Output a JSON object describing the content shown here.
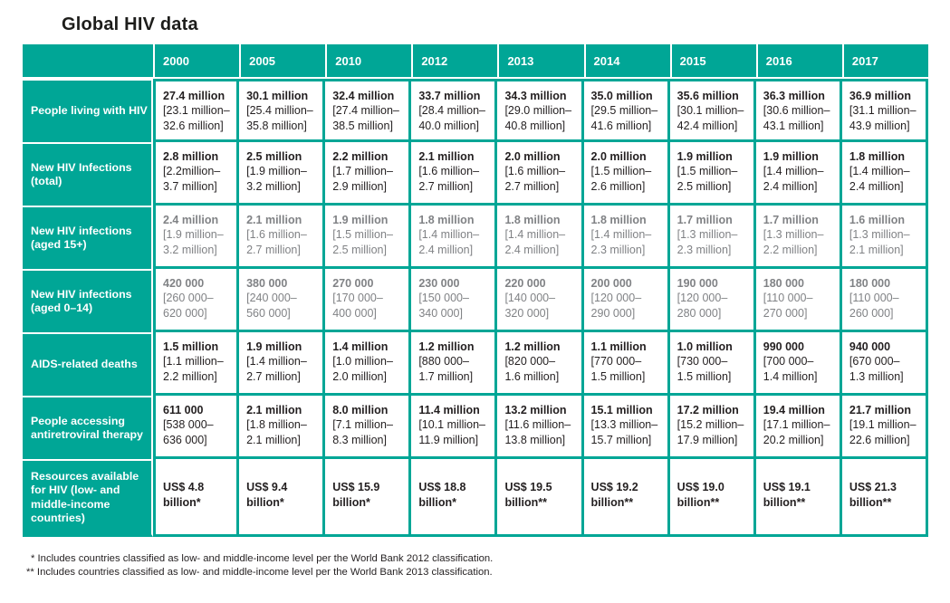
{
  "title": "Global HIV data",
  "colors": {
    "teal": "#00a696",
    "text_dark": "#231f20",
    "text_muted_gray": "#808285",
    "background": "#ffffff"
  },
  "table": {
    "year_headers": [
      "2000",
      "2005",
      "2010",
      "2012",
      "2013",
      "2014",
      "2015",
      "2016",
      "2017"
    ],
    "rows": [
      {
        "label": "People living with HIV",
        "muted": false,
        "tall": false,
        "cells": [
          {
            "value": "27.4 million",
            "range": "[23.1 million–​32.6 million]"
          },
          {
            "value": "30.1 million",
            "range": "[25.4 million–​35.8 million]"
          },
          {
            "value": "32.4 million",
            "range": "[27.4 million–​38.5 million]"
          },
          {
            "value": "33.7 million",
            "range": "[28.4 million–​40.0 million]"
          },
          {
            "value": "34.3 million",
            "range": "[29.0 million–​40.8 million]"
          },
          {
            "value": "35.0 million",
            "range": "[29.5 million–​41.6 million]"
          },
          {
            "value": "35.6 million",
            "range": "[30.1 million–​42.4 million]"
          },
          {
            "value": "36.3 million",
            "range": "[30.6 million–​43.1 million]"
          },
          {
            "value": "36.9 million",
            "range": "[31.1 million–​43.9 million]"
          }
        ]
      },
      {
        "label": "New HIV Infections (total)",
        "muted": false,
        "tall": false,
        "cells": [
          {
            "value": "2.8 million",
            "range": "[2.2million–​3.7 million]"
          },
          {
            "value": "2.5 million",
            "range": "[1.9 million–​3.2 million]"
          },
          {
            "value": "2.2 million",
            "range": "[1.7 million–​2.9 million]"
          },
          {
            "value": "2.1 million",
            "range": "[1.6 million–​2.7 million]"
          },
          {
            "value": "2.0 million",
            "range": "[1.6 million–​2.7 million]"
          },
          {
            "value": "2.0 million",
            "range": "[1.5 million–​2.6 million]"
          },
          {
            "value": "1.9 million",
            "range": "[1.5 million–​2.5 million]"
          },
          {
            "value": "1.9 million",
            "range": "[1.4 million–​2.4 million]"
          },
          {
            "value": "1.8 million",
            "range": "[1.4 million–​2.4 million]"
          }
        ]
      },
      {
        "label": "New HIV infections (aged 15+)",
        "muted": true,
        "tall": false,
        "cells": [
          {
            "value": "2.4 million",
            "range": "[1.9 million–​3.2 million]"
          },
          {
            "value": "2.1 million",
            "range": "[1.6 million–​2.7 million]"
          },
          {
            "value": "1.9 million",
            "range": "[1.5 million–​2.5 million]"
          },
          {
            "value": "1.8 million",
            "range": "[1.4 million–​2.4 million]"
          },
          {
            "value": "1.8 million",
            "range": "[1.4 million–​2.4 million]"
          },
          {
            "value": "1.8 million",
            "range": "[1.4 million–​2.3 million]"
          },
          {
            "value": "1.7 million",
            "range": "[1.3 million–​2.3 million]"
          },
          {
            "value": "1.7 million",
            "range": "[1.3 million–​2.2 million]"
          },
          {
            "value": "1.6 million",
            "range": "[1.3 million–​2.1 million]"
          }
        ]
      },
      {
        "label": "New HIV infections (aged 0–14)",
        "muted": true,
        "tall": false,
        "cells": [
          {
            "value": "420 000",
            "range": "[260 000–​620 000]"
          },
          {
            "value": "380 000",
            "range": "[240 000–​560 000]"
          },
          {
            "value": "270 000",
            "range": "[170 000–​400 000]"
          },
          {
            "value": "230 000",
            "range": "[150 000–​340 000]"
          },
          {
            "value": "220 000",
            "range": "[140 000–​320 000]"
          },
          {
            "value": "200 000",
            "range": "[120 000–​290 000]"
          },
          {
            "value": "190 000",
            "range": "[120 000–​280 000]"
          },
          {
            "value": "180 000",
            "range": "[110 000–​270 000]"
          },
          {
            "value": "180 000",
            "range": "[110 000–​260 000]"
          }
        ]
      },
      {
        "label": "AIDS-related deaths",
        "muted": false,
        "tall": false,
        "cells": [
          {
            "value": "1.5 million",
            "range": "[1.1 million–​2.2 million]"
          },
          {
            "value": "1.9 million",
            "range": "[1.4 million–​2.7 million]"
          },
          {
            "value": "1.4 million",
            "range": "[1.0 million–​2.0 million]"
          },
          {
            "value": "1.2 million",
            "range": "[880 000–​1.7 million]"
          },
          {
            "value": "1.2 million",
            "range": "[820 000–​1.6 million]"
          },
          {
            "value": "1.1 million",
            "range": "[770 000–​1.5 million]"
          },
          {
            "value": "1.0 million",
            "range": "[730 000–​1.5 million]"
          },
          {
            "value": "990 000",
            "range": "[700 000–​1.4 million]"
          },
          {
            "value": "940 000",
            "range": "[670 000–​1.3 million]"
          }
        ]
      },
      {
        "label": "People accessing antiretroviral therapy",
        "muted": false,
        "tall": false,
        "cells": [
          {
            "value": "611 000",
            "range": "[538 000–​636 000]"
          },
          {
            "value": "2.1 million",
            "range": "[1.8 million–​2.1 million]"
          },
          {
            "value": "8.0 million",
            "range": "[7.1 million–​8.3 million]"
          },
          {
            "value": "11.4 million",
            "range": "[10.1 million–​11.9 million]"
          },
          {
            "value": "13.2 million",
            "range": "[11.6 million–​13.8 million]"
          },
          {
            "value": "15.1 million",
            "range": "[13.3 million–​15.7 million]"
          },
          {
            "value": "17.2 million",
            "range": "[15.2 million–​17.9 million]"
          },
          {
            "value": "19.4 million",
            "range": "[17.1 million–​20.2 million]"
          },
          {
            "value": "21.7 million",
            "range": "[19.1 million–​22.6 million]"
          }
        ]
      },
      {
        "label": "Resources available for HIV (low- and middle-income countries)",
        "muted": false,
        "tall": true,
        "cells": [
          {
            "value": "US$ 4.8 billion*",
            "range": ""
          },
          {
            "value": "US$ 9.4 billion*",
            "range": ""
          },
          {
            "value": "US$ 15.9 billion*",
            "range": ""
          },
          {
            "value": "US$ 18.8 billion*",
            "range": ""
          },
          {
            "value": "US$ 19.5 billion**",
            "range": ""
          },
          {
            "value": "US$ 19.2 billion**",
            "range": ""
          },
          {
            "value": "US$ 19.0 billion**",
            "range": ""
          },
          {
            "value": "US$ 19.1 billion**",
            "range": ""
          },
          {
            "value": "US$ 21.3 billion**",
            "range": ""
          }
        ]
      }
    ]
  },
  "footnotes": [
    "* Includes countries classified as low- and middle-income level per the World Bank 2012 classification.",
    "** Includes countries classified as low- and middle-income level per the World Bank 2013 classification."
  ]
}
